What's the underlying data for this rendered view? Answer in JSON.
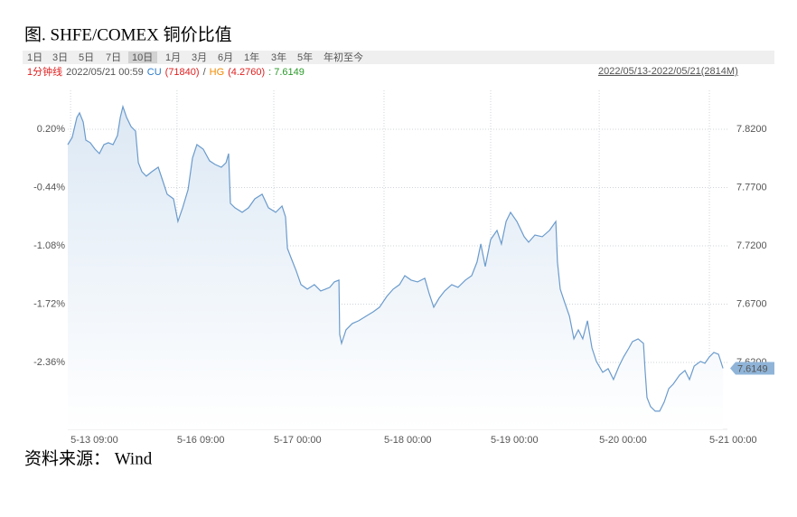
{
  "chart_data": {
    "type": "line",
    "title": "图. SHFE/COMEX 铜价比值",
    "tabs": [
      "1日",
      "3日",
      "5日",
      "7日",
      "10日",
      "1月",
      "3月",
      "6月",
      "1年",
      "3年",
      "5年",
      "年初至今"
    ],
    "selected_tab": 4,
    "info": {
      "interval": "1分钟线",
      "time": "2022/05/21 00:59",
      "cu_label": "CU",
      "cu": "(71840)",
      "sep": "/",
      "hg_label": "HG",
      "hg": "(4.2760)",
      "ratio": ": 7.6149"
    },
    "range": "2022/05/13-2022/05/21(2814M)",
    "source": "资料来源： Wind",
    "x": [
      0,
      19,
      39,
      50,
      66,
      77,
      96,
      116,
      135,
      154,
      173,
      193,
      212,
      224,
      235,
      251,
      270,
      289,
      301,
      316,
      335,
      359,
      386,
      405,
      424,
      451,
      470,
      490,
      513,
      532,
      551,
      578,
      605,
      628,
      655,
      675,
      686,
      694,
      713,
      744,
      771,
      798,
      829,
      856,
      887,
      914,
      929,
      937,
      952,
      975,
      995,
      1022,
      1052,
      1079,
      1099,
      1118,
      1137,
      1157,
      1160,
      1168,
      1187,
      1214,
      1241,
      1272,
      1303,
      1330,
      1361,
      1388,
      1415,
      1438,
      1465,
      1492,
      1523,
      1542,
      1561,
      1584,
      1608,
      1638,
      1665,
      1696,
      1723,
      1746,
      1762,
      1781,
      1804,
      1831,
      1850,
      1870,
      1889,
      1916,
      1947,
      1966,
      1993,
      2024,
      2055,
      2082,
      2089,
      2101,
      2120,
      2140,
      2159,
      2178,
      2197,
      2217,
      2236,
      2255,
      2282,
      2305,
      2328,
      2352,
      2371,
      2394,
      2409,
      2433,
      2456,
      2463,
      2471,
      2486,
      2506,
      2525,
      2544,
      2564,
      2583,
      2610,
      2633,
      2652,
      2672,
      2699,
      2718,
      2737,
      2756,
      2776,
      2795
    ],
    "series": [
      {
        "name": "SHFE/COMEX",
        "color": "#6b9bcc",
        "values": [
          7.8068,
          7.813,
          7.8301,
          7.834,
          7.8262,
          7.8107,
          7.8084,
          7.8029,
          7.7991,
          7.8068,
          7.8084,
          7.8068,
          7.8146,
          7.8301,
          7.8394,
          7.8301,
          7.8223,
          7.8184,
          7.7913,
          7.7836,
          7.7797,
          7.7836,
          7.7874,
          7.7758,
          7.7642,
          7.7603,
          7.7409,
          7.7526,
          7.7681,
          7.7952,
          7.8068,
          7.8029,
          7.7929,
          7.7898,
          7.7874,
          7.7913,
          7.7991,
          7.7564,
          7.7526,
          7.7487,
          7.7526,
          7.7603,
          7.7642,
          7.7526,
          7.7487,
          7.7541,
          7.7448,
          7.7177,
          7.7099,
          7.6983,
          7.6867,
          7.6828,
          7.6867,
          7.6813,
          7.6828,
          7.6844,
          7.689,
          7.6906,
          7.6441,
          7.6363,
          7.6479,
          7.6534,
          7.6557,
          7.6596,
          7.6634,
          7.6673,
          7.6766,
          7.6828,
          7.6867,
          7.6944,
          7.6906,
          7.689,
          7.6921,
          7.6789,
          7.6673,
          7.6751,
          7.6813,
          7.6867,
          7.6844,
          7.6906,
          7.6944,
          7.7061,
          7.7216,
          7.7022,
          7.7254,
          7.7332,
          7.7216,
          7.7409,
          7.7487,
          7.7409,
          7.7278,
          7.7231,
          7.7293,
          7.7278,
          7.7332,
          7.7409,
          7.7061,
          7.6828,
          7.6712,
          7.6596,
          7.6402,
          7.6479,
          7.6402,
          7.6557,
          7.6324,
          7.6208,
          7.6115,
          7.6146,
          7.6053,
          7.6169,
          7.6247,
          7.6324,
          7.6379,
          7.6402,
          7.6363,
          7.6131,
          7.5898,
          7.5821,
          7.5782,
          7.5782,
          7.5859,
          7.5976,
          7.6014,
          7.6092,
          7.6131,
          7.6053,
          7.6169,
          7.6208,
          7.6193,
          7.6247,
          7.6286,
          7.627,
          7.6149
        ]
      }
    ],
    "xlim": [
      0,
      2814
    ],
    "xticks": [
      {
        "value": 12,
        "label": "5-13 09:00"
      },
      {
        "value": 466,
        "label": "5-16 09:00"
      },
      {
        "value": 879,
        "label": "5-17 00:00"
      },
      {
        "value": 1349,
        "label": "5-18 00:00"
      },
      {
        "value": 1804,
        "label": "5-19 00:00"
      },
      {
        "value": 2267,
        "label": "5-20 00:00"
      },
      {
        "value": 2737,
        "label": "5-21 00:00"
      }
    ],
    "ylim": [
      7.5626,
      7.8533
    ],
    "yticks": [
      {
        "value": 7.82,
        "label": "7.8200"
      },
      {
        "value": 7.77,
        "label": "7.7700"
      },
      {
        "value": 7.72,
        "label": "7.7200"
      },
      {
        "value": 7.67,
        "label": "7.6700"
      },
      {
        "value": 7.62,
        "label": "7.6200"
      }
    ],
    "y2lim": [
      -3.094,
      0.627
    ],
    "y2ticks": [
      {
        "value": 0.2,
        "label": "0.20%"
      },
      {
        "value": -0.44,
        "label": "-0.44%"
      },
      {
        "value": -1.08,
        "label": "-1.08%"
      },
      {
        "value": -1.72,
        "label": "-1.72%"
      },
      {
        "value": -2.36,
        "label": "-2.36%"
      }
    ],
    "grid": true
  }
}
